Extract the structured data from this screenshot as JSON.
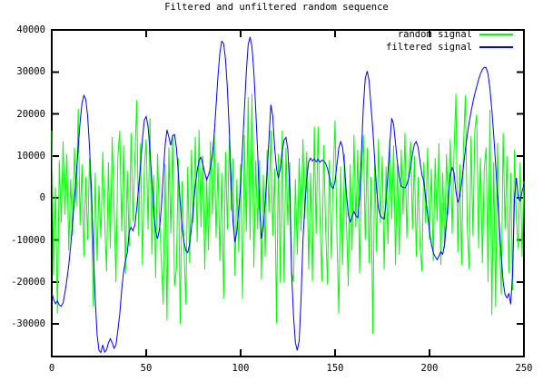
{
  "window": {
    "background": "#ffffff"
  },
  "chart_data": {
    "type": "line",
    "title": "Filtered and unfiltered random sequence",
    "xlabel": "",
    "ylabel": "",
    "xlim": [
      0,
      250
    ],
    "ylim": [
      -37750,
      40000
    ],
    "x_ticks": [
      0,
      50,
      100,
      150,
      200,
      250
    ],
    "y_ticks": [
      40000,
      30000,
      20000,
      10000,
      0,
      -10000,
      -20000,
      -30000
    ],
    "grid": false,
    "legend_position": "top-right-inside",
    "axis_color": "#000000",
    "background": "#ffffff",
    "series": [
      {
        "name": "random signal",
        "color": "#00ff00",
        "values": [
          16000,
          -18400,
          2500,
          -27500,
          9000,
          -6000,
          13500,
          -4000,
          10500,
          -12500,
          4500,
          -9000,
          12000,
          -2000,
          21200,
          -6500,
          8000,
          -14000,
          5000,
          -10000,
          9500,
          -3500,
          -25900,
          6000,
          -15000,
          3000,
          -9500,
          11000,
          -5000,
          -17500,
          8500,
          -12000,
          14500,
          -2500,
          -20000,
          10000,
          16000,
          -8000,
          12500,
          -18000,
          6500,
          -11500,
          15500,
          -5500,
          9000,
          23300,
          -9000,
          13000,
          -16000,
          7000,
          14000,
          -7500,
          19000,
          -13500,
          5500,
          -19000,
          10500,
          -4500,
          -14500,
          -25300,
          8000,
          -29200,
          12000,
          -8500,
          15000,
          -21000,
          -16900,
          9500,
          -30000,
          4000,
          -12000,
          -25300,
          7500,
          -15500,
          11500,
          -6000,
          14500,
          -10500,
          16200,
          -7000,
          10000,
          -17000,
          5000,
          -12500,
          13500,
          -4000,
          16200,
          -9500,
          8500,
          -15000,
          6000,
          -24000,
          11000,
          -7500,
          14000,
          -3000,
          9500,
          -18500,
          4500,
          -13000,
          8000,
          -24000,
          15000,
          -8000,
          24000,
          -10000,
          24800,
          -16500,
          8900,
          -7500,
          9000,
          -19500,
          5500,
          -14000,
          11500,
          -3500,
          16000,
          -9000,
          7000,
          -29800,
          10500,
          -20200,
          16000,
          -20200,
          12000,
          -6500,
          8500,
          -17500,
          -20000,
          4500,
          -13500,
          9500,
          -8000,
          14000,
          -5000,
          11000,
          -17000,
          6000,
          -19900,
          17000,
          -8500,
          17000,
          -4500,
          -19900,
          12500,
          -7000,
          -20600,
          9000,
          -14500,
          5500,
          18400,
          -9500,
          -27500,
          7500,
          -16000,
          10500,
          -5500,
          -21000,
          8000,
          -12500,
          15000,
          -7000,
          11500,
          -18000,
          6500,
          15000,
          -10000,
          12000,
          -15500,
          5000,
          -32400,
          9000,
          -13000,
          14000,
          -6000,
          10000,
          -17000,
          7500,
          -11000,
          14000,
          -5000,
          12500,
          -16000,
          8000,
          -13500,
          11500,
          -4000,
          15500,
          -9500,
          6500,
          13500,
          -7500,
          10000,
          -14000,
          5000,
          -11500,
          -17500,
          8500,
          -6000,
          12000,
          -10000,
          7000,
          -15000,
          9500,
          -5500,
          13000,
          -16000,
          6000,
          -12000,
          10500,
          -4000,
          14000,
          -8500,
          11000,
          24800,
          -13000,
          8000,
          -16000,
          12500,
          24400,
          -6500,
          -17000,
          14700,
          -9000,
          16000,
          19900,
          -12000,
          9500,
          -15500,
          7000,
          12000,
          -20000,
          21000,
          -27900,
          8500,
          -26000,
          13000,
          -10000,
          -23000,
          15500,
          -7500,
          10000,
          -18000,
          6000,
          -22000,
          11500,
          -5000,
          -12000,
          8500,
          -14000,
          4000
        ]
      },
      {
        "name": "filtered signal",
        "color": "#0000ff",
        "values": [
          -22500,
          -24200,
          -25200,
          -24500,
          -25500,
          -25800,
          -25000,
          -22500,
          -19500,
          -16000,
          -11500,
          -6000,
          -500,
          5500,
          12000,
          18000,
          22500,
          24400,
          23500,
          19500,
          12000,
          2000,
          -12000,
          -24000,
          -32500,
          -36300,
          -36800,
          -35000,
          -36700,
          -36200,
          -34500,
          -33500,
          -34500,
          -35800,
          -35000,
          -31500,
          -27700,
          -22000,
          -17700,
          -15000,
          -13000,
          -8000,
          -7000,
          -7800,
          -6500,
          -2500,
          2500,
          7600,
          14000,
          18500,
          19400,
          17000,
          11000,
          4000,
          -3000,
          -8000,
          -9700,
          -7500,
          -2500,
          5000,
          12500,
          16200,
          14500,
          12500,
          14800,
          15100,
          12000,
          6000,
          -1000,
          -7000,
          -10500,
          -12500,
          -13000,
          -11000,
          -7000,
          -2000,
          3000,
          6500,
          9000,
          9700,
          8000,
          6000,
          4300,
          5500,
          7100,
          10000,
          15000,
          22000,
          29000,
          34500,
          37300,
          36800,
          33000,
          26000,
          16000,
          4000,
          -6000,
          -10500,
          -8000,
          -2600,
          3000,
          12000,
          21000,
          30000,
          36500,
          38300,
          36000,
          30000,
          21000,
          11000,
          -2000,
          -9700,
          -7000,
          -1000,
          6000,
          14000,
          22200,
          19500,
          12000,
          7000,
          4700,
          7000,
          11000,
          13800,
          14400,
          11500,
          2000,
          -18000,
          -28000,
          -34500,
          -36300,
          -34000,
          -24000,
          -10000,
          -2000,
          4500,
          8600,
          9500,
          8800,
          9300,
          8600,
          9200,
          8500,
          9000,
          8800,
          8200,
          7000,
          5000,
          2800,
          2200,
          4000,
          8000,
          12000,
          13400,
          12000,
          7500,
          1000,
          -4000,
          -5700,
          -4500,
          -3200,
          -4200,
          -4700,
          0,
          11200,
          22000,
          28500,
          30200,
          28000,
          22000,
          16200,
          9000,
          2000,
          -2600,
          -4200,
          -4800,
          -5000,
          -1000,
          6000,
          13000,
          19000,
          17500,
          13000,
          8500,
          5000,
          2800,
          2500,
          2400,
          3200,
          4750,
          7500,
          10500,
          12800,
          13400,
          12000,
          8500,
          5500,
          3900,
          0,
          -4000,
          -8000,
          -11000,
          -13000,
          -14000,
          -14700,
          -13800,
          -12800,
          -13400,
          -11000,
          -6000,
          500,
          5500,
          7300,
          6000,
          1500,
          -1100,
          500,
          3500,
          7500,
          11500,
          15000,
          18000,
          20500,
          22800,
          24800,
          26500,
          28200,
          29600,
          30600,
          31100,
          31000,
          29500,
          26000,
          21000,
          15000,
          8000,
          500,
          -7000,
          -14000,
          -20000,
          -23000,
          -23800,
          -22800,
          -25300,
          -18000,
          0,
          4800,
          -100,
          -700,
          1500,
          3200
        ]
      }
    ]
  }
}
